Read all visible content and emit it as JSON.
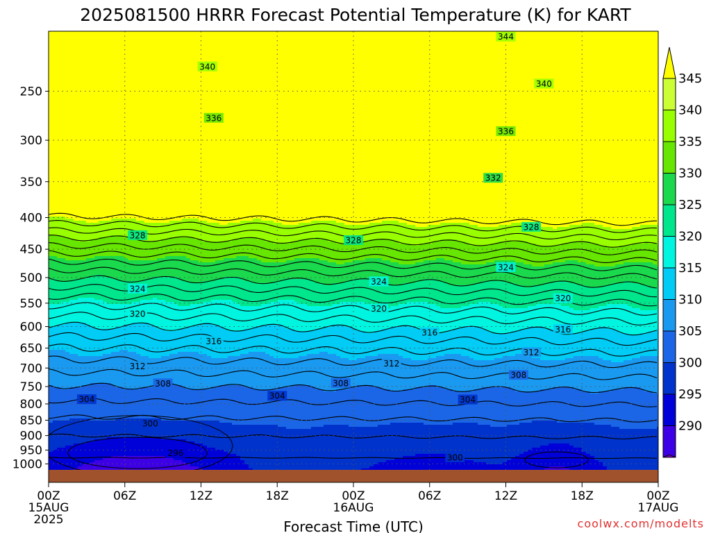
{
  "title": "2025081500 HRRR Forecast Potential Temperature (K) for KART",
  "x_axis_title": "Forecast Time (UTC)",
  "credit": "coolwx.com/modelts",
  "colors": {
    "ground": "#a0522d",
    "grid": "#555555",
    "credit": "#e03030"
  },
  "chart_data": {
    "type": "heatmap",
    "title": "2025081500 HRRR Forecast Potential Temperature (K) for KART",
    "xlabel": "Forecast Time (UTC)",
    "ylabel": "",
    "x_ticks": [
      "00Z",
      "06Z",
      "12Z",
      "18Z",
      "00Z",
      "06Z",
      "12Z",
      "18Z",
      "00Z"
    ],
    "x_date_labels": [
      {
        "tick": 0,
        "lines": [
          "15AUG",
          "2025"
        ]
      },
      {
        "tick": 4,
        "lines": [
          "16AUG"
        ]
      },
      {
        "tick": 8,
        "lines": [
          "17AUG"
        ]
      }
    ],
    "y_ticks": [
      250,
      300,
      350,
      400,
      450,
      500,
      550,
      600,
      650,
      700,
      750,
      800,
      850,
      900,
      950,
      1000
    ],
    "y_scale": "log",
    "ylim": [
      1025,
      200
    ],
    "xlim_hours": [
      0,
      48
    ],
    "grid": true,
    "colorbar": {
      "levels": [
        290,
        295,
        300,
        305,
        310,
        315,
        320,
        325,
        330,
        335,
        340,
        345
      ],
      "colors": [
        "#7a00cc",
        "#3d00e6",
        "#0000d9",
        "#0033cc",
        "#1a66e6",
        "#1a99f0",
        "#00ccf5",
        "#00f5e0",
        "#00e68c",
        "#1ad94d",
        "#66e600",
        "#99ff00",
        "#ccff33",
        "#ffff00"
      ],
      "extend": "both"
    },
    "contour_interval": 2,
    "labeled_contours": [
      {
        "value": 340,
        "hour": 12.5,
        "pressure": 228
      },
      {
        "value": 336,
        "hour": 13,
        "pressure": 276
      },
      {
        "value": 328,
        "hour": 7,
        "pressure": 427
      },
      {
        "value": 324,
        "hour": 7,
        "pressure": 521
      },
      {
        "value": 320,
        "hour": 7,
        "pressure": 572
      },
      {
        "value": 316,
        "hour": 13,
        "pressure": 633
      },
      {
        "value": 312,
        "hour": 7,
        "pressure": 695
      },
      {
        "value": 308,
        "hour": 9,
        "pressure": 741
      },
      {
        "value": 304,
        "hour": 3,
        "pressure": 786
      },
      {
        "value": 300,
        "hour": 8,
        "pressure": 860
      },
      {
        "value": 296,
        "hour": 10,
        "pressure": 960
      },
      {
        "value": 328,
        "hour": 24,
        "pressure": 435
      },
      {
        "value": 324,
        "hour": 26,
        "pressure": 507
      },
      {
        "value": 320,
        "hour": 26,
        "pressure": 561
      },
      {
        "value": 316,
        "hour": 30,
        "pressure": 613
      },
      {
        "value": 312,
        "hour": 27,
        "pressure": 688
      },
      {
        "value": 308,
        "hour": 23,
        "pressure": 740
      },
      {
        "value": 304,
        "hour": 18,
        "pressure": 776
      },
      {
        "value": 300,
        "hour": 32,
        "pressure": 976
      },
      {
        "value": 344,
        "hour": 36,
        "pressure": 204
      },
      {
        "value": 340,
        "hour": 39,
        "pressure": 243
      },
      {
        "value": 336,
        "hour": 36,
        "pressure": 290
      },
      {
        "value": 332,
        "hour": 35,
        "pressure": 345
      },
      {
        "value": 328,
        "hour": 38,
        "pressure": 414
      },
      {
        "value": 324,
        "hour": 36,
        "pressure": 481
      },
      {
        "value": 320,
        "hour": 40.5,
        "pressure": 540
      },
      {
        "value": 316,
        "hour": 40.5,
        "pressure": 606
      },
      {
        "value": 312,
        "hour": 38,
        "pressure": 660
      },
      {
        "value": 308,
        "hour": 37,
        "pressure": 718
      },
      {
        "value": 304,
        "hour": 33,
        "pressure": 787
      }
    ]
  }
}
